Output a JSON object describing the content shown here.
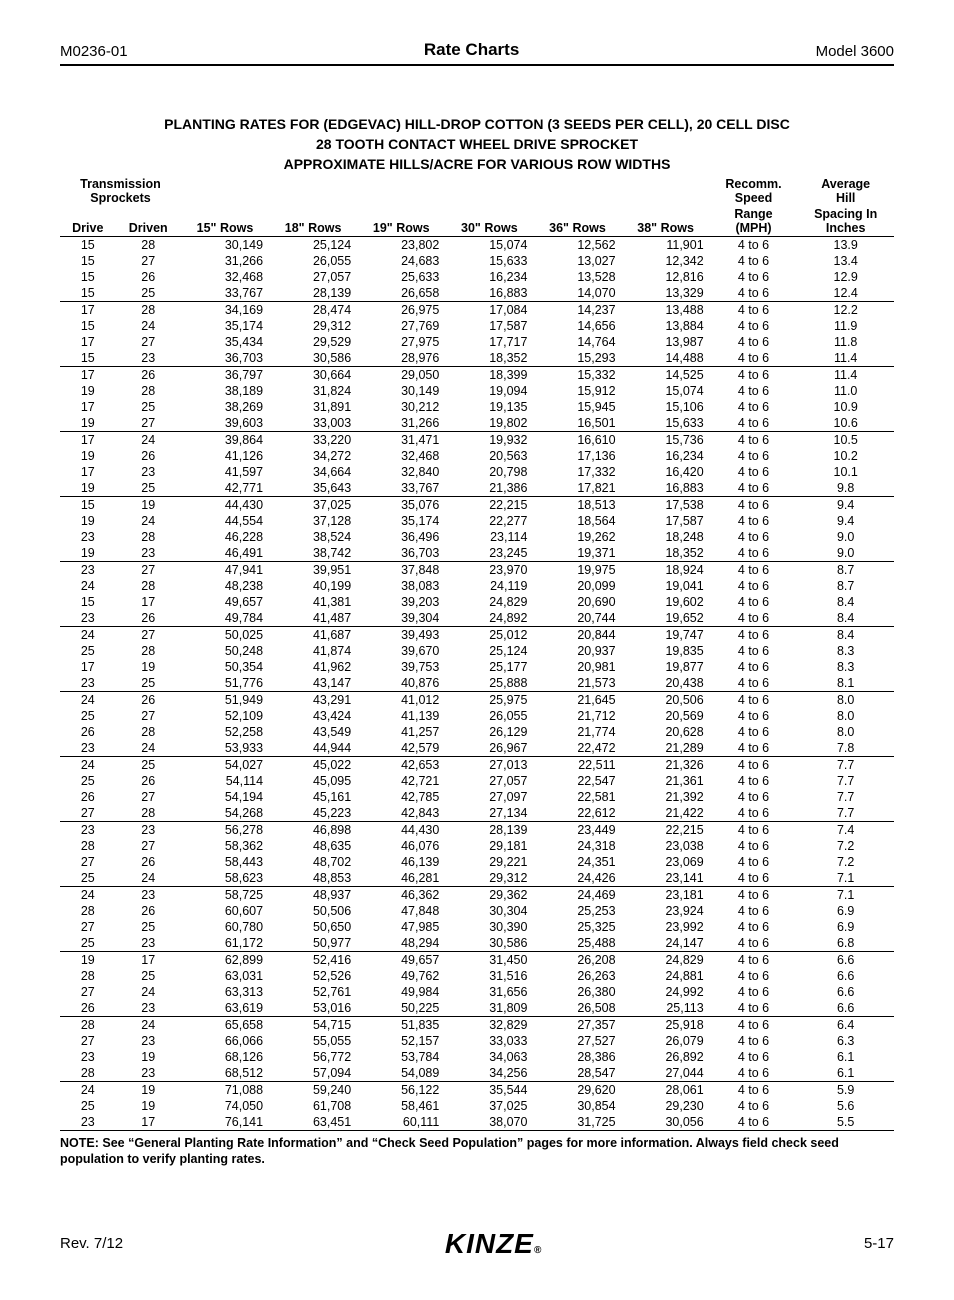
{
  "header": {
    "left": "M0236-01",
    "center": "Rate Charts",
    "right": "Model 3600"
  },
  "titles": [
    "PLANTING RATES FOR (EDGEVAC) HILL-DROP COTTON (3 SEEDS PER CELL), 20 CELL DISC",
    "28 TOOTH CONTACT WHEEL DRIVE SPROCKET",
    "APPROXIMATE HILLS/ACRE FOR VARIOUS ROW WIDTHS"
  ],
  "columns": {
    "sprockets_top": "Transmission",
    "sprockets_mid": "Sprockets",
    "drive": "Drive",
    "driven": "Driven",
    "r15": "15\" Rows",
    "r18": "18\" Rows",
    "r19": "19\" Rows",
    "r30": "30\" Rows",
    "r36": "36\" Rows",
    "r38": "38\" Rows",
    "mph1": "Recomm.",
    "mph2": "Speed",
    "mph3": "Range",
    "mph4": "(MPH)",
    "sp1": "Average",
    "sp2": "Hill",
    "sp3": "Spacing In",
    "sp4": "Inches"
  },
  "mph_value": "4 to 6",
  "groups": [
    [
      [
        15,
        28,
        "30,149",
        "25,124",
        "23,802",
        "15,074",
        "12,562",
        "11,901",
        "13.9"
      ],
      [
        15,
        27,
        "31,266",
        "26,055",
        "24,683",
        "15,633",
        "13,027",
        "12,342",
        "13.4"
      ],
      [
        15,
        26,
        "32,468",
        "27,057",
        "25,633",
        "16,234",
        "13,528",
        "12,816",
        "12.9"
      ],
      [
        15,
        25,
        "33,767",
        "28,139",
        "26,658",
        "16,883",
        "14,070",
        "13,329",
        "12.4"
      ]
    ],
    [
      [
        17,
        28,
        "34,169",
        "28,474",
        "26,975",
        "17,084",
        "14,237",
        "13,488",
        "12.2"
      ],
      [
        15,
        24,
        "35,174",
        "29,312",
        "27,769",
        "17,587",
        "14,656",
        "13,884",
        "11.9"
      ],
      [
        17,
        27,
        "35,434",
        "29,529",
        "27,975",
        "17,717",
        "14,764",
        "13,987",
        "11.8"
      ],
      [
        15,
        23,
        "36,703",
        "30,586",
        "28,976",
        "18,352",
        "15,293",
        "14,488",
        "11.4"
      ]
    ],
    [
      [
        17,
        26,
        "36,797",
        "30,664",
        "29,050",
        "18,399",
        "15,332",
        "14,525",
        "11.4"
      ],
      [
        19,
        28,
        "38,189",
        "31,824",
        "30,149",
        "19,094",
        "15,912",
        "15,074",
        "11.0"
      ],
      [
        17,
        25,
        "38,269",
        "31,891",
        "30,212",
        "19,135",
        "15,945",
        "15,106",
        "10.9"
      ],
      [
        19,
        27,
        "39,603",
        "33,003",
        "31,266",
        "19,802",
        "16,501",
        "15,633",
        "10.6"
      ]
    ],
    [
      [
        17,
        24,
        "39,864",
        "33,220",
        "31,471",
        "19,932",
        "16,610",
        "15,736",
        "10.5"
      ],
      [
        19,
        26,
        "41,126",
        "34,272",
        "32,468",
        "20,563",
        "17,136",
        "16,234",
        "10.2"
      ],
      [
        17,
        23,
        "41,597",
        "34,664",
        "32,840",
        "20,798",
        "17,332",
        "16,420",
        "10.1"
      ],
      [
        19,
        25,
        "42,771",
        "35,643",
        "33,767",
        "21,386",
        "17,821",
        "16,883",
        "9.8"
      ]
    ],
    [
      [
        15,
        19,
        "44,430",
        "37,025",
        "35,076",
        "22,215",
        "18,513",
        "17,538",
        "9.4"
      ],
      [
        19,
        24,
        "44,554",
        "37,128",
        "35,174",
        "22,277",
        "18,564",
        "17,587",
        "9.4"
      ],
      [
        23,
        28,
        "46,228",
        "38,524",
        "36,496",
        "23,114",
        "19,262",
        "18,248",
        "9.0"
      ],
      [
        19,
        23,
        "46,491",
        "38,742",
        "36,703",
        "23,245",
        "19,371",
        "18,352",
        "9.0"
      ]
    ],
    [
      [
        23,
        27,
        "47,941",
        "39,951",
        "37,848",
        "23,970",
        "19,975",
        "18,924",
        "8.7"
      ],
      [
        24,
        28,
        "48,238",
        "40,199",
        "38,083",
        "24,119",
        "20,099",
        "19,041",
        "8.7"
      ],
      [
        15,
        17,
        "49,657",
        "41,381",
        "39,203",
        "24,829",
        "20,690",
        "19,602",
        "8.4"
      ],
      [
        23,
        26,
        "49,784",
        "41,487",
        "39,304",
        "24,892",
        "20,744",
        "19,652",
        "8.4"
      ]
    ],
    [
      [
        24,
        27,
        "50,025",
        "41,687",
        "39,493",
        "25,012",
        "20,844",
        "19,747",
        "8.4"
      ],
      [
        25,
        28,
        "50,248",
        "41,874",
        "39,670",
        "25,124",
        "20,937",
        "19,835",
        "8.3"
      ],
      [
        17,
        19,
        "50,354",
        "41,962",
        "39,753",
        "25,177",
        "20,981",
        "19,877",
        "8.3"
      ],
      [
        23,
        25,
        "51,776",
        "43,147",
        "40,876",
        "25,888",
        "21,573",
        "20,438",
        "8.1"
      ]
    ],
    [
      [
        24,
        26,
        "51,949",
        "43,291",
        "41,012",
        "25,975",
        "21,645",
        "20,506",
        "8.0"
      ],
      [
        25,
        27,
        "52,109",
        "43,424",
        "41,139",
        "26,055",
        "21,712",
        "20,569",
        "8.0"
      ],
      [
        26,
        28,
        "52,258",
        "43,549",
        "41,257",
        "26,129",
        "21,774",
        "20,628",
        "8.0"
      ],
      [
        23,
        24,
        "53,933",
        "44,944",
        "42,579",
        "26,967",
        "22,472",
        "21,289",
        "7.8"
      ]
    ],
    [
      [
        24,
        25,
        "54,027",
        "45,022",
        "42,653",
        "27,013",
        "22,511",
        "21,326",
        "7.7"
      ],
      [
        25,
        26,
        "54,114",
        "45,095",
        "42,721",
        "27,057",
        "22,547",
        "21,361",
        "7.7"
      ],
      [
        26,
        27,
        "54,194",
        "45,161",
        "42,785",
        "27,097",
        "22,581",
        "21,392",
        "7.7"
      ],
      [
        27,
        28,
        "54,268",
        "45,223",
        "42,843",
        "27,134",
        "22,612",
        "21,422",
        "7.7"
      ]
    ],
    [
      [
        23,
        23,
        "56,278",
        "46,898",
        "44,430",
        "28,139",
        "23,449",
        "22,215",
        "7.4"
      ],
      [
        28,
        27,
        "58,362",
        "48,635",
        "46,076",
        "29,181",
        "24,318",
        "23,038",
        "7.2"
      ],
      [
        27,
        26,
        "58,443",
        "48,702",
        "46,139",
        "29,221",
        "24,351",
        "23,069",
        "7.2"
      ],
      [
        25,
        24,
        "58,623",
        "48,853",
        "46,281",
        "29,312",
        "24,426",
        "23,141",
        "7.1"
      ]
    ],
    [
      [
        24,
        23,
        "58,725",
        "48,937",
        "46,362",
        "29,362",
        "24,469",
        "23,181",
        "7.1"
      ],
      [
        28,
        26,
        "60,607",
        "50,506",
        "47,848",
        "30,304",
        "25,253",
        "23,924",
        "6.9"
      ],
      [
        27,
        25,
        "60,780",
        "50,650",
        "47,985",
        "30,390",
        "25,325",
        "23,992",
        "6.9"
      ],
      [
        25,
        23,
        "61,172",
        "50,977",
        "48,294",
        "30,586",
        "25,488",
        "24,147",
        "6.8"
      ]
    ],
    [
      [
        19,
        17,
        "62,899",
        "52,416",
        "49,657",
        "31,450",
        "26,208",
        "24,829",
        "6.6"
      ],
      [
        28,
        25,
        "63,031",
        "52,526",
        "49,762",
        "31,516",
        "26,263",
        "24,881",
        "6.6"
      ],
      [
        27,
        24,
        "63,313",
        "52,761",
        "49,984",
        "31,656",
        "26,380",
        "24,992",
        "6.6"
      ],
      [
        26,
        23,
        "63,619",
        "53,016",
        "50,225",
        "31,809",
        "26,508",
        "25,113",
        "6.6"
      ]
    ],
    [
      [
        28,
        24,
        "65,658",
        "54,715",
        "51,835",
        "32,829",
        "27,357",
        "25,918",
        "6.4"
      ],
      [
        27,
        23,
        "66,066",
        "55,055",
        "52,157",
        "33,033",
        "27,527",
        "26,079",
        "6.3"
      ],
      [
        23,
        19,
        "68,126",
        "56,772",
        "53,784",
        "34,063",
        "28,386",
        "26,892",
        "6.1"
      ],
      [
        28,
        23,
        "68,512",
        "57,094",
        "54,089",
        "34,256",
        "28,547",
        "27,044",
        "6.1"
      ]
    ],
    [
      [
        24,
        19,
        "71,088",
        "59,240",
        "56,122",
        "35,544",
        "29,620",
        "28,061",
        "5.9"
      ],
      [
        25,
        19,
        "74,050",
        "61,708",
        "58,461",
        "37,025",
        "30,854",
        "29,230",
        "5.6"
      ],
      [
        23,
        17,
        "76,141",
        "63,451",
        "60,111",
        "38,070",
        "31,725",
        "30,056",
        "5.5"
      ]
    ]
  ],
  "note": "NOTE: See “General Planting Rate Information” and “Check Seed Population” pages for more information. Always field check seed population to verify planting rates.",
  "footer": {
    "left": "Rev. 7/12",
    "logo": "KINZE",
    "right": "5-17"
  }
}
